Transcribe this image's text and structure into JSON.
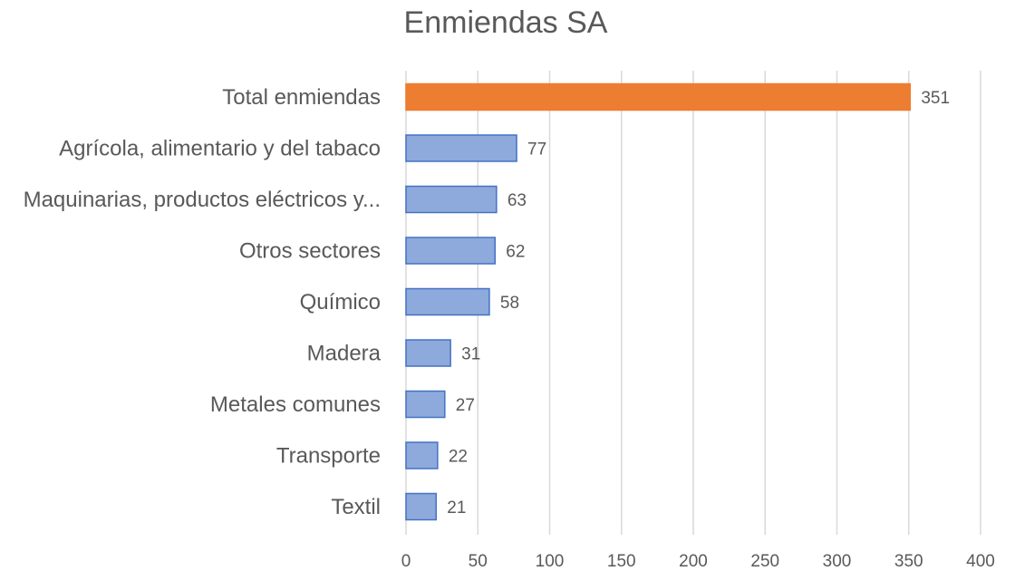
{
  "chart_data": {
    "type": "bar",
    "orientation": "horizontal",
    "title": "Enmiendas SA",
    "xlabel": "",
    "ylabel": "",
    "categories": [
      "Total enmiendas",
      "Agrícola, alimentario y del tabaco",
      "Maquinarias, productos eléctricos y...",
      "Otros sectores",
      "Químico",
      "Madera",
      "Metales comunes",
      "Transporte",
      "Textil"
    ],
    "values": [
      351,
      77,
      63,
      62,
      58,
      31,
      27,
      22,
      21
    ],
    "bar_colors": [
      "#ed7d31",
      "#8ea9db",
      "#8ea9db",
      "#8ea9db",
      "#8ea9db",
      "#8ea9db",
      "#8ea9db",
      "#8ea9db",
      "#8ea9db"
    ],
    "bar_edge_colors": [
      "#ed7d31",
      "#4472c4",
      "#4472c4",
      "#4472c4",
      "#4472c4",
      "#4472c4",
      "#4472c4",
      "#4472c4",
      "#4472c4"
    ],
    "xlim": [
      0,
      400
    ],
    "xticks": [
      0,
      50,
      100,
      150,
      200,
      250,
      300,
      350,
      400
    ],
    "grid": "vertical",
    "legend": "none"
  }
}
